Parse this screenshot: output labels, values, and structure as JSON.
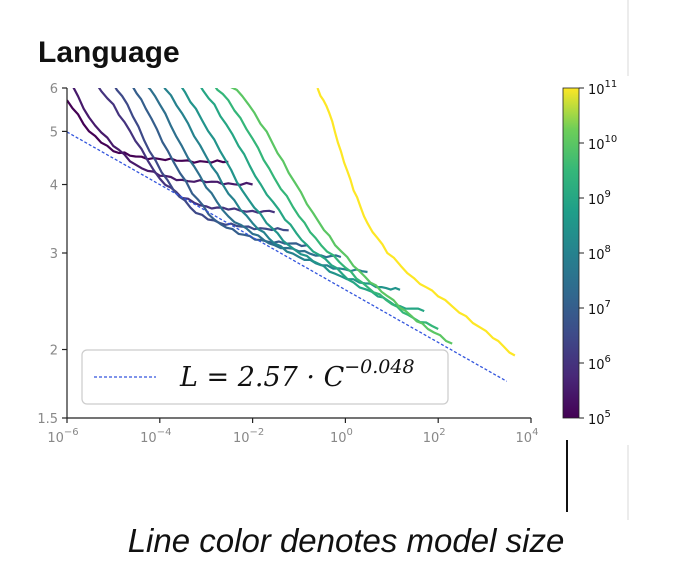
{
  "chart_data": {
    "type": "line",
    "title": "Language",
    "xscale": "log",
    "yscale": "log",
    "xlim": [
      1e-06,
      10000.0
    ],
    "ylim": [
      1.5,
      6
    ],
    "x_ticks": [
      {
        "value": 1e-06,
        "base": "10",
        "exp": "−6"
      },
      {
        "value": 0.0001,
        "base": "10",
        "exp": "−4"
      },
      {
        "value": 0.01,
        "base": "10",
        "exp": "−2"
      },
      {
        "value": 1,
        "base": "10",
        "exp": "0"
      },
      {
        "value": 100.0,
        "base": "10",
        "exp": "2"
      },
      {
        "value": 10000.0,
        "base": "10",
        "exp": "4"
      }
    ],
    "y_ticks": [
      {
        "value": 1.5,
        "label": "1.5"
      },
      {
        "value": 2,
        "label": "2"
      },
      {
        "value": 3,
        "label": "3"
      },
      {
        "value": 4,
        "label": "4"
      },
      {
        "value": 5,
        "label": "5"
      },
      {
        "value": 6,
        "label": "6"
      }
    ],
    "fit": {
      "label_lhs": "L = 2.57 · C",
      "label_exp": "−0.048",
      "coefficient": 2.57,
      "exponent": -0.048,
      "color": "#3355dd",
      "style": "dashed"
    },
    "legend_position": "lower-left",
    "colorbar": {
      "label_meaning": "model size",
      "scale": "log",
      "range": [
        100000.0,
        100000000000.0
      ],
      "colormap": "viridis",
      "ticks": [
        {
          "value": 100000.0,
          "base": "10",
          "exp": "5"
        },
        {
          "value": 1000000.0,
          "base": "10",
          "exp": "6"
        },
        {
          "value": 10000000.0,
          "base": "10",
          "exp": "7"
        },
        {
          "value": 100000000.0,
          "base": "10",
          "exp": "8"
        },
        {
          "value": 1000000000.0,
          "base": "10",
          "exp": "9"
        },
        {
          "value": 10000000000.0,
          "base": "10",
          "exp": "10"
        },
        {
          "value": 100000000000.0,
          "base": "10",
          "exp": "11"
        }
      ]
    },
    "series": [
      {
        "model_size": 100000.0,
        "x": [
          1e-06,
          3e-06,
          1e-05,
          3e-05,
          0.0001,
          0.0003,
          0.001,
          0.003
        ],
        "y": [
          5.7,
          5.0,
          4.6,
          4.5,
          4.45,
          4.42,
          4.4,
          4.4
        ]
      },
      {
        "model_size": 300000.0,
        "x": [
          1e-06,
          3e-06,
          1e-05,
          3e-05,
          0.0001,
          0.0003,
          0.001,
          0.003,
          0.01
        ],
        "y": [
          6.3,
          5.3,
          4.7,
          4.35,
          4.15,
          4.08,
          4.04,
          4.02,
          4.0
        ]
      },
      {
        "model_size": 1000000.0,
        "x": [
          3e-06,
          1e-05,
          3e-05,
          0.0001,
          0.0003,
          0.001,
          0.003,
          0.01,
          0.03
        ],
        "y": [
          6.3,
          5.6,
          4.8,
          4.1,
          3.78,
          3.65,
          3.6,
          3.58,
          3.56
        ]
      },
      {
        "model_size": 3000000.0,
        "x": [
          7e-06,
          2e-05,
          6e-05,
          0.0002,
          0.0006,
          0.002,
          0.006,
          0.02,
          0.06
        ],
        "y": [
          6.4,
          5.6,
          4.6,
          3.9,
          3.55,
          3.4,
          3.35,
          3.32,
          3.3
        ]
      },
      {
        "model_size": 10000000.0,
        "x": [
          2e-05,
          5e-05,
          0.00015,
          0.0005,
          0.0015,
          0.005,
          0.015,
          0.05,
          0.15
        ],
        "y": [
          6.3,
          5.5,
          4.6,
          3.85,
          3.45,
          3.25,
          3.17,
          3.12,
          3.1
        ]
      },
      {
        "model_size": 30000000.0,
        "x": [
          4e-05,
          0.0001,
          0.0003,
          0.001,
          0.003,
          0.01,
          0.03,
          0.1,
          0.3,
          0.8
        ],
        "y": [
          6.3,
          5.6,
          4.7,
          3.95,
          3.5,
          3.25,
          3.1,
          3.02,
          2.97,
          2.95
        ]
      },
      {
        "model_size": 100000000.0,
        "x": [
          0.0001,
          0.0003,
          0.001,
          0.003,
          0.01,
          0.03,
          0.1,
          0.3,
          1,
          3
        ],
        "y": [
          6.2,
          5.4,
          4.5,
          3.85,
          3.4,
          3.12,
          2.95,
          2.85,
          2.8,
          2.77
        ]
      },
      {
        "model_size": 300000000.0,
        "x": [
          0.0002,
          0.0006,
          0.002,
          0.006,
          0.02,
          0.06,
          0.2,
          0.6,
          2,
          6,
          15
        ],
        "y": [
          6.3,
          5.5,
          4.6,
          3.9,
          3.4,
          3.1,
          2.9,
          2.75,
          2.65,
          2.6,
          2.57
        ]
      },
      {
        "model_size": 1000000000.0,
        "x": [
          0.0005,
          0.0015,
          0.005,
          0.015,
          0.05,
          0.15,
          0.5,
          1.5,
          5,
          15,
          50
        ],
        "y": [
          6.3,
          5.6,
          4.7,
          4.0,
          3.45,
          3.1,
          2.85,
          2.65,
          2.5,
          2.4,
          2.35
        ]
      },
      {
        "model_size": 3000000000.0,
        "x": [
          0.001,
          0.003,
          0.01,
          0.03,
          0.1,
          0.3,
          1,
          3,
          10,
          30,
          100
        ],
        "y": [
          6.3,
          5.7,
          4.85,
          4.1,
          3.5,
          3.1,
          2.82,
          2.6,
          2.42,
          2.28,
          2.18
        ]
      },
      {
        "model_size": 10000000000.0,
        "x": [
          0.002,
          0.006,
          0.02,
          0.06,
          0.2,
          0.6,
          2,
          6,
          20,
          60,
          200
        ],
        "y": [
          6.3,
          5.8,
          5.0,
          4.2,
          3.55,
          3.1,
          2.78,
          2.55,
          2.35,
          2.18,
          2.05
        ]
      },
      {
        "model_size": 100000000000.0,
        "x": [
          0.25,
          0.45,
          0.8,
          1.5,
          3,
          8,
          30,
          100,
          400,
          1500,
          4500
        ],
        "y": [
          6.0,
          5.4,
          4.6,
          3.9,
          3.4,
          3.0,
          2.7,
          2.5,
          2.3,
          2.1,
          1.95
        ]
      }
    ]
  },
  "caption": "Line color denotes model size"
}
